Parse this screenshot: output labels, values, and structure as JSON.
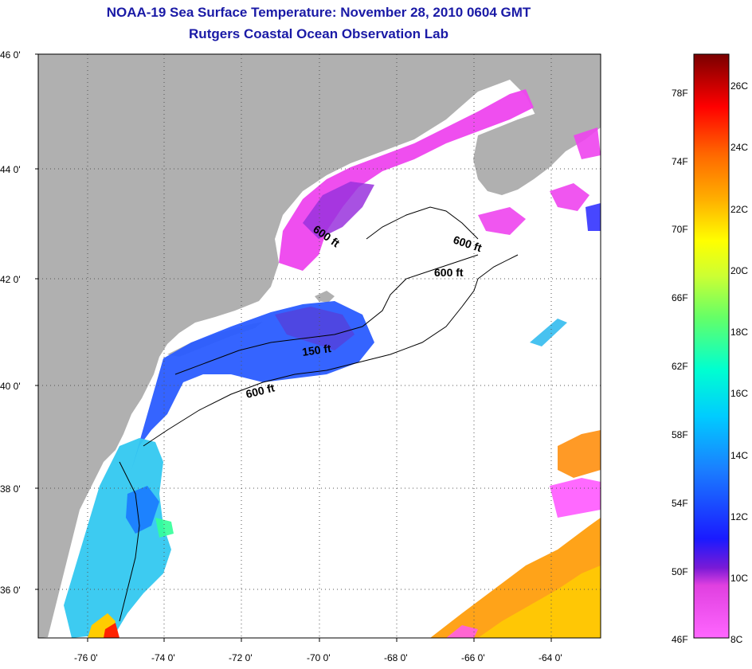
{
  "header": {
    "title": "NOAA-19 Sea Surface Temperature:  November 28, 2010 0604 GMT",
    "subtitle": "Rutgers Coastal Ocean Observation Lab"
  },
  "map": {
    "lat_labels": [
      "46 0'",
      "44 0'",
      "42 0'",
      "40 0'",
      "38 0'",
      "36 0'"
    ],
    "lon_labels": [
      "-76 0'",
      "-74 0'",
      "-72 0'",
      "-70 0'",
      "-68 0'",
      "-66 0'",
      "-64 0'"
    ],
    "isobath_labels": [
      "600 ft",
      "600 ft",
      "600 ft",
      "150 ft",
      "600 ft"
    ],
    "colors": {
      "land": "#b0b0b0",
      "ocean_nodata": "#ffffff",
      "grid": "#555555"
    }
  },
  "colorbar": {
    "fahrenheit_labels": [
      "78F",
      "74F",
      "70F",
      "66F",
      "62F",
      "58F",
      "54F",
      "50F",
      "46F"
    ],
    "celsius_labels": [
      "26C",
      "24C",
      "22C",
      "20C",
      "18C",
      "16C",
      "14C",
      "12C",
      "10C",
      "8C"
    ]
  }
}
